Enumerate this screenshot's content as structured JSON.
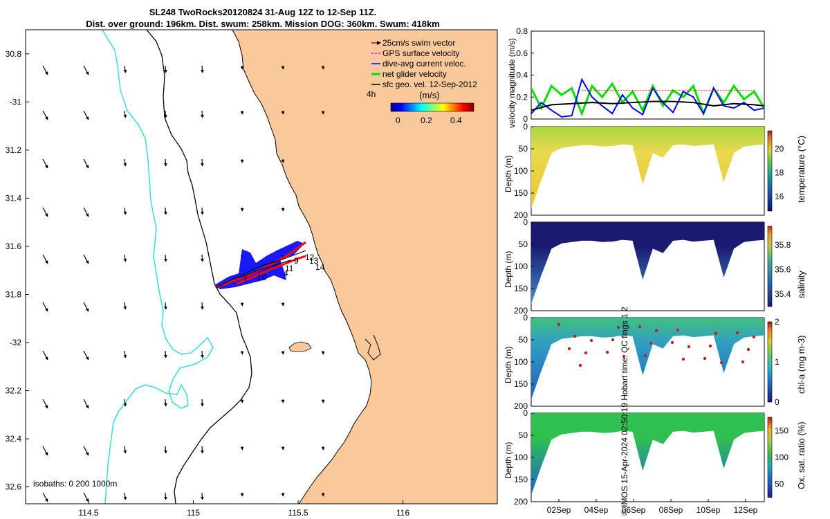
{
  "title_line1": "SL248 TwoRocks20120824 31-Aug 12Z to 12-Sep 11Z.",
  "title_line2": "Dist. over ground: 196km. Dist. swum: 258km. Mission DOG: 360km. Swum: 418km",
  "side_note": "© IMOS 15-Apr-2024 02:50:19 Hobart time. QC flags 1 2",
  "colors": {
    "land": "#f9c89b",
    "isobath_200": "#000000",
    "isobath_1000": "#33dddd",
    "swim": "#ff0000",
    "gps": "#ff00ff",
    "dive_avg": "#0000ff",
    "net": "#00dd00",
    "geo": "#000000"
  },
  "chart_data": [
    {
      "type": "map",
      "title": "SL248 TwoRocks20120824 31-Aug 12Z to 12-Sep 11Z.",
      "xlim": [
        114.2,
        116.45
      ],
      "ylim": [
        -32.67,
        -30.7
      ],
      "x_ticks": [
        114.5,
        115,
        115.5,
        116
      ],
      "x_tick_labels": [
        "114.5",
        "115",
        "115.5",
        "116"
      ],
      "y_ticks": [
        -30.8,
        -31,
        -31.2,
        -31.4,
        -31.6,
        -31.8,
        -32,
        -32.2,
        -32.4,
        -32.6
      ],
      "y_tick_labels": [
        "30.8",
        "-31",
        "31.2",
        "31.4",
        "31.6",
        "31.8",
        "-32",
        "32.2",
        "32.4",
        "32.6"
      ],
      "legend": [
        "25cm/s swim vector",
        "GPS surface velocity",
        "dive-avg current veloc.",
        "net glider velocity",
        "sfc geo. vel. 12-Sep-2012"
      ],
      "legend_tag": "4h",
      "colorbar": {
        "label": "(m/s)",
        "ticks": [
          "0",
          "0.2",
          "0.4"
        ],
        "range": [
          0,
          0.5
        ]
      },
      "isobath_label": "isobaths: 0   200  1000m",
      "track_labels": [
        "12",
        "13",
        "14",
        "11",
        "4",
        "10",
        "1",
        "9"
      ]
    },
    {
      "type": "line",
      "ylabel": "velocity magnitude (m/s)",
      "ylim": [
        0,
        0.8
      ],
      "yticks": [
        "0",
        "0.2",
        "0.4",
        "0.6",
        "0.8"
      ],
      "series": [
        {
          "name": "net glider velocity",
          "color": "#00dd00",
          "x": [
            0,
            0.5,
            1,
            1.5,
            2,
            2.5,
            3,
            3.5,
            4,
            4.5,
            5,
            5.5,
            6,
            6.5,
            7,
            7.5,
            8,
            8.5,
            9,
            9.5,
            10,
            10.5,
            11,
            11.5
          ],
          "values": [
            0.28,
            0.1,
            0.3,
            0.22,
            0.28,
            0.05,
            0.3,
            0.2,
            0.32,
            0.15,
            0.25,
            0.08,
            0.3,
            0.12,
            0.26,
            0.2,
            0.3,
            0.05,
            0.28,
            0.15,
            0.3,
            0.18,
            0.25,
            0.1
          ]
        },
        {
          "name": "dive-avg current veloc.",
          "color": "#0000ff",
          "x": [
            0,
            0.5,
            1,
            1.5,
            2,
            2.5,
            3,
            3.5,
            4,
            4.5,
            5,
            5.5,
            6,
            6.5,
            7,
            7.5,
            8,
            8.5,
            9,
            9.5,
            10,
            10.5,
            11,
            11.5
          ],
          "values": [
            0.05,
            0.15,
            0.08,
            0.02,
            0.03,
            0.36,
            0.2,
            0.12,
            0.05,
            0.22,
            0.1,
            0.04,
            0.28,
            0.15,
            0.06,
            0.25,
            0.2,
            0.05,
            0.28,
            0.12,
            0.1,
            0.15,
            0.08,
            0.1
          ]
        },
        {
          "name": "sfc geo. vel.",
          "color": "#000000",
          "x": [
            0,
            1,
            2,
            3,
            4,
            5,
            6,
            7,
            8,
            9,
            10,
            11,
            11.5
          ],
          "values": [
            0.08,
            0.13,
            0.14,
            0.15,
            0.14,
            0.15,
            0.16,
            0.16,
            0.15,
            0.12,
            0.14,
            0.13,
            0.12
          ]
        },
        {
          "name": "25cm/s swim vector",
          "color": "#ff0000",
          "x": [
            2.5,
            11
          ],
          "values": [
            0.26,
            0.26
          ]
        }
      ]
    },
    {
      "type": "heatmap",
      "variable": "temperature",
      "ylabel": "Depth (m)",
      "clabel": "temperature (°C)",
      "ctick_labels": [
        "16",
        "18",
        "20"
      ],
      "crange": [
        14.8,
        21.5
      ],
      "ylim": [
        0,
        200
      ],
      "yticks": [
        "0",
        "50",
        "100",
        "150",
        "200"
      ],
      "depth_profile": [
        185,
        120,
        60,
        48,
        45,
        42,
        42,
        45,
        44,
        40,
        42,
        130,
        60,
        70,
        42,
        40,
        44,
        42,
        40,
        125,
        60,
        45,
        42,
        40
      ]
    },
    {
      "type": "heatmap",
      "variable": "salinity",
      "ylabel": "Depth (m)",
      "clabel": "salinity",
      "ctick_labels": [
        "35.4",
        "35.6",
        "35.8"
      ],
      "crange": [
        35.3,
        35.95
      ],
      "ylim": [
        0,
        200
      ],
      "yticks": [
        "0",
        "50",
        "100",
        "150",
        "200"
      ],
      "depth_profile": [
        185,
        120,
        60,
        48,
        45,
        42,
        42,
        45,
        44,
        40,
        42,
        130,
        60,
        70,
        42,
        40,
        44,
        42,
        40,
        125,
        60,
        45,
        42,
        40
      ]
    },
    {
      "type": "heatmap",
      "variable": "chl-a",
      "ylabel": "Depth (m)",
      "clabel": "chl-a (mg m-3)",
      "ctick_labels": [
        "0",
        "1",
        "2"
      ],
      "crange": [
        0,
        2
      ],
      "ylim": [
        0,
        200
      ],
      "yticks": [
        "0",
        "50",
        "100",
        "150",
        "200"
      ],
      "depth_profile": [
        185,
        120,
        60,
        48,
        45,
        42,
        42,
        45,
        44,
        40,
        42,
        130,
        60,
        70,
        42,
        40,
        44,
        42,
        40,
        125,
        60,
        45,
        42,
        40
      ]
    },
    {
      "type": "heatmap",
      "variable": "oxygen",
      "ylabel": "Depth (m)",
      "clabel": "Ox. sat. ratio (%)",
      "ctick_labels": [
        "50",
        "100",
        "150"
      ],
      "crange": [
        25,
        175
      ],
      "ylim": [
        0,
        200
      ],
      "yticks": [
        "0",
        "50",
        "100",
        "150",
        "200"
      ],
      "xtick_labels": [
        "02Sep",
        "04Sep",
        "06Sep",
        "08Sep",
        "10Sep",
        "12Sep"
      ],
      "depth_profile": [
        185,
        120,
        60,
        48,
        45,
        42,
        42,
        45,
        44,
        40,
        42,
        130,
        60,
        70,
        42,
        40,
        44,
        42,
        40,
        125,
        60,
        45,
        42,
        40
      ]
    }
  ]
}
